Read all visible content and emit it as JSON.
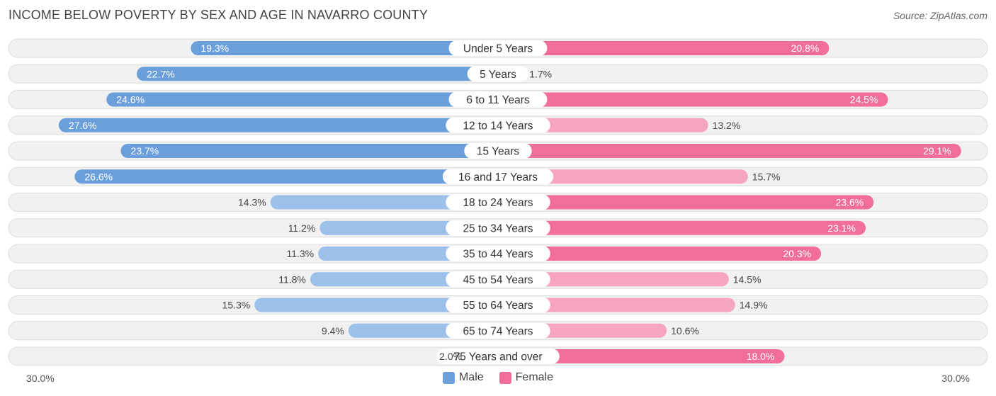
{
  "title": "INCOME BELOW POVERTY BY SEX AND AGE IN NAVARRO COUNTY",
  "source": "Source: ZipAtlas.com",
  "colors": {
    "male_strong": "#6a9fdb",
    "male_light": "#9dc0ea",
    "female_strong": "#f06e97",
    "female_light": "#f7a5bf",
    "row_bg": "#f1f1f1",
    "row_border": "#dcdcdc"
  },
  "chart_data": {
    "type": "bar",
    "orientation": "horizontal-diverging",
    "title": "INCOME BELOW POVERTY BY SEX AND AGE IN NAVARRO COUNTY",
    "categories": [
      "Under 5 Years",
      "5 Years",
      "6 to 11 Years",
      "12 to 14 Years",
      "15 Years",
      "16 and 17 Years",
      "18 to 24 Years",
      "25 to 34 Years",
      "35 to 44 Years",
      "45 to 54 Years",
      "55 to 64 Years",
      "65 to 74 Years",
      "75 Years and over"
    ],
    "series": [
      {
        "name": "Male",
        "values": [
          19.3,
          22.7,
          24.6,
          27.6,
          23.7,
          26.6,
          14.3,
          11.2,
          11.3,
          11.8,
          15.3,
          9.4,
          2.0
        ]
      },
      {
        "name": "Female",
        "values": [
          20.8,
          1.7,
          24.5,
          13.2,
          29.1,
          15.7,
          23.6,
          23.1,
          20.3,
          14.5,
          14.9,
          10.6,
          18.0
        ]
      }
    ],
    "labels_male": [
      "19.3%",
      "22.7%",
      "24.6%",
      "27.6%",
      "23.7%",
      "26.6%",
      "14.3%",
      "11.2%",
      "11.3%",
      "11.8%",
      "15.3%",
      "9.4%",
      "2.0%"
    ],
    "labels_female": [
      "20.8%",
      "1.7%",
      "24.5%",
      "13.2%",
      "29.1%",
      "15.7%",
      "23.6%",
      "23.1%",
      "20.3%",
      "14.5%",
      "14.9%",
      "10.6%",
      "18.0%"
    ],
    "xlim": [
      -30,
      30
    ],
    "axis_min_label": "30.0%",
    "axis_max_label": "30.0%",
    "legend": [
      "Male",
      "Female"
    ],
    "legend_position": "bottom-center"
  }
}
